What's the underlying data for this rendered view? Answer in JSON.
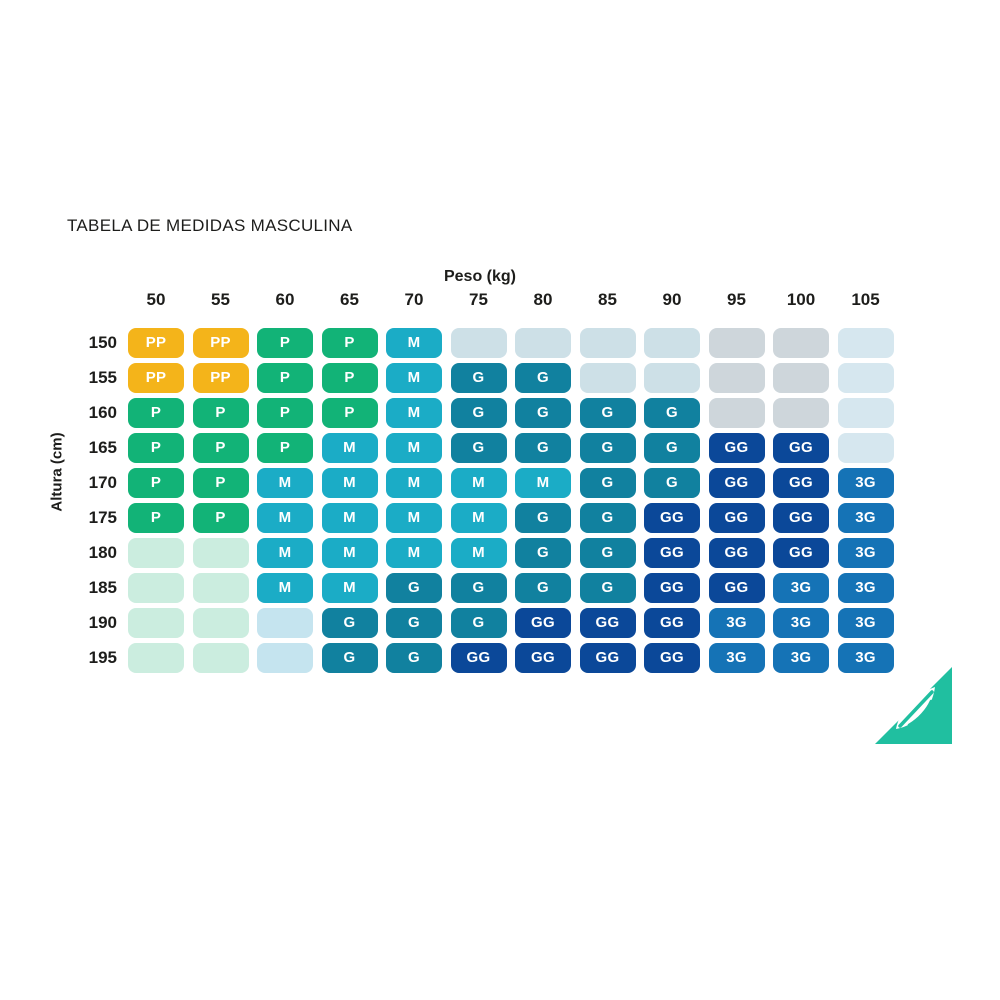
{
  "title": "TABELA DE MEDIDAS MASCULINA",
  "chart_data": {
    "type": "heatmap",
    "title": "TABELA DE MEDIDAS MASCULINA",
    "xlabel": "Peso (kg)",
    "ylabel": "Altura (cm)",
    "x_categories": [
      "50",
      "55",
      "60",
      "65",
      "70",
      "75",
      "80",
      "85",
      "90",
      "95",
      "100",
      "105"
    ],
    "y_categories": [
      "150",
      "155",
      "160",
      "165",
      "170",
      "175",
      "180",
      "185",
      "190",
      "195"
    ],
    "sizes_legend": [
      "PP",
      "P",
      "M",
      "G",
      "GG",
      "3G"
    ],
    "cells": [
      [
        "PP",
        "PP",
        "P",
        "P",
        "M",
        "e1",
        "e1",
        "e1",
        "e1",
        "e2",
        "e2",
        "e3"
      ],
      [
        "PP",
        "PP",
        "P",
        "P",
        "M",
        "G",
        "G",
        "e1",
        "e1",
        "e2",
        "e2",
        "e3"
      ],
      [
        "P",
        "P",
        "P",
        "P",
        "M",
        "G",
        "G",
        "G",
        "G",
        "e2",
        "e2",
        "e3"
      ],
      [
        "P",
        "P",
        "P",
        "M",
        "M",
        "G",
        "G",
        "G",
        "G",
        "GG",
        "GG",
        "e3"
      ],
      [
        "P",
        "P",
        "M",
        "M",
        "M",
        "M",
        "M",
        "G",
        "G",
        "GG",
        "GG",
        "3G"
      ],
      [
        "P",
        "P",
        "M",
        "M",
        "M",
        "M",
        "G",
        "G",
        "GG",
        "GG",
        "GG",
        "3G"
      ],
      [
        "e4",
        "e4",
        "M",
        "M",
        "M",
        "M",
        "G",
        "G",
        "GG",
        "GG",
        "GG",
        "3G"
      ],
      [
        "e4",
        "e4",
        "M",
        "M",
        "G",
        "G",
        "G",
        "G",
        "GG",
        "GG",
        "3G",
        "3G"
      ],
      [
        "e4",
        "e4",
        "e5",
        "G",
        "G",
        "G",
        "GG",
        "GG",
        "GG",
        "3G",
        "3G",
        "3G"
      ],
      [
        "e4",
        "e4",
        "e5",
        "G",
        "G",
        "GG",
        "GG",
        "GG",
        "GG",
        "3G",
        "3G",
        "3G"
      ]
    ],
    "colors": {
      "PP": "#F4B41A",
      "P": "#12B377",
      "M": "#1BACC6",
      "G": "#11819F",
      "GG": "#0B4899",
      "3G": "#1573B6",
      "e1": "#CDE0E7",
      "e2": "#CED6DB",
      "e3": "#D6E7EF",
      "e4": "#CBEDDF",
      "e5": "#C5E4EF"
    },
    "empty_cell_codes": {
      "e1": "pale ice-blue empty cell",
      "e2": "pale gray empty cell",
      "e3": "pale blue empty cell",
      "e4": "pale mint empty cell",
      "e5": "pale cyan empty cell"
    },
    "legend_position": "none",
    "grid_on": false
  },
  "logo": {
    "color": "#20BFA0"
  }
}
